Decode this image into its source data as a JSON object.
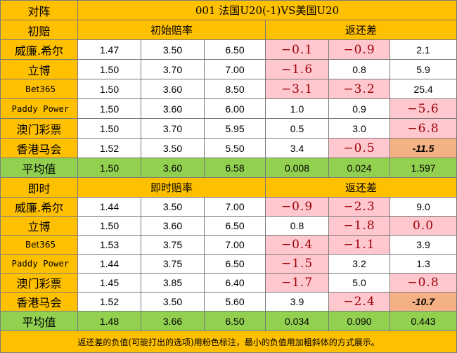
{
  "header": {
    "corner": "对阵",
    "match_title": "001  法国U20(-1)VS美国U20"
  },
  "sections": [
    {
      "label": "初赔",
      "odds_header": "初始赔率",
      "return_header": "返还差",
      "rows": [
        {
          "bookmaker": "威廉.希尔",
          "odds": [
            "1.47",
            "3.50",
            "6.50"
          ],
          "returns": [
            "−0.1",
            "−0.9",
            "2.1"
          ],
          "return_styles": [
            "pink",
            "pink",
            "plain"
          ]
        },
        {
          "bookmaker": "立博",
          "odds": [
            "1.50",
            "3.70",
            "7.00"
          ],
          "returns": [
            "−1.6",
            "0.8",
            "5.9"
          ],
          "return_styles": [
            "pink",
            "plain",
            "plain"
          ]
        },
        {
          "bookmaker": "Bet365",
          "odds": [
            "1.50",
            "3.60",
            "8.50"
          ],
          "returns": [
            "−3.1",
            "−3.2",
            "25.4"
          ],
          "return_styles": [
            "pink",
            "pink",
            "plain"
          ]
        },
        {
          "bookmaker": "Paddy Power",
          "odds": [
            "1.50",
            "3.60",
            "6.00"
          ],
          "returns": [
            "1.0",
            "0.9",
            "−5.6"
          ],
          "return_styles": [
            "plain",
            "plain",
            "pink"
          ]
        },
        {
          "bookmaker": "澳门彩票",
          "odds": [
            "1.50",
            "3.70",
            "5.95"
          ],
          "returns": [
            "0.5",
            "3.0",
            "−6.8"
          ],
          "return_styles": [
            "plain",
            "plain",
            "pink"
          ]
        },
        {
          "bookmaker": "香港马会",
          "odds": [
            "1.52",
            "3.50",
            "5.50"
          ],
          "returns": [
            "3.4",
            "−0.5",
            "-11.5"
          ],
          "return_styles": [
            "plain",
            "pink",
            "min"
          ]
        }
      ],
      "average": {
        "label": "平均值",
        "odds": [
          "1.50",
          "3.60",
          "6.58"
        ],
        "returns": [
          "0.008",
          "0.024",
          "1.597"
        ]
      }
    },
    {
      "label": "即时",
      "odds_header": "即时赔率",
      "return_header": "返还差",
      "rows": [
        {
          "bookmaker": "威廉.希尔",
          "odds": [
            "1.44",
            "3.50",
            "7.00"
          ],
          "returns": [
            "−0.9",
            "−2.3",
            "9.0"
          ],
          "return_styles": [
            "pink",
            "pink",
            "plain"
          ]
        },
        {
          "bookmaker": "立博",
          "odds": [
            "1.50",
            "3.60",
            "6.50"
          ],
          "returns": [
            "0.8",
            "−1.8",
            "0.0"
          ],
          "return_styles": [
            "plain",
            "pink",
            "pink"
          ]
        },
        {
          "bookmaker": "Bet365",
          "odds": [
            "1.53",
            "3.75",
            "7.00"
          ],
          "returns": [
            "−0.4",
            "−1.1",
            "3.9"
          ],
          "return_styles": [
            "pink",
            "pink",
            "plain"
          ]
        },
        {
          "bookmaker": "Paddy Power",
          "odds": [
            "1.44",
            "3.75",
            "6.50"
          ],
          "returns": [
            "−1.5",
            "3.2",
            "1.3"
          ],
          "return_styles": [
            "pink",
            "plain",
            "plain"
          ]
        },
        {
          "bookmaker": "澳门彩票",
          "odds": [
            "1.45",
            "3.85",
            "6.40"
          ],
          "returns": [
            "−1.7",
            "5.0",
            "−0.8"
          ],
          "return_styles": [
            "pink",
            "plain",
            "pink"
          ]
        },
        {
          "bookmaker": "香港马会",
          "odds": [
            "1.52",
            "3.50",
            "5.60"
          ],
          "returns": [
            "3.9",
            "−2.4",
            "-10.7"
          ],
          "return_styles": [
            "plain",
            "pink",
            "min"
          ]
        }
      ],
      "average": {
        "label": "平均值",
        "odds": [
          "1.48",
          "3.66",
          "6.50"
        ],
        "returns": [
          "0.034",
          "0.090",
          "0.443"
        ]
      }
    }
  ],
  "footer": "返还差的负值(可能打出的选项)用粉色标注，最小的负值用加粗斜体的方式展示。",
  "colors": {
    "header_bg": "#ffc000",
    "average_bg": "#92d050",
    "negative_bg": "#ffc7ce",
    "negative_text": "#9c0006",
    "min_bg": "#f4b183"
  }
}
